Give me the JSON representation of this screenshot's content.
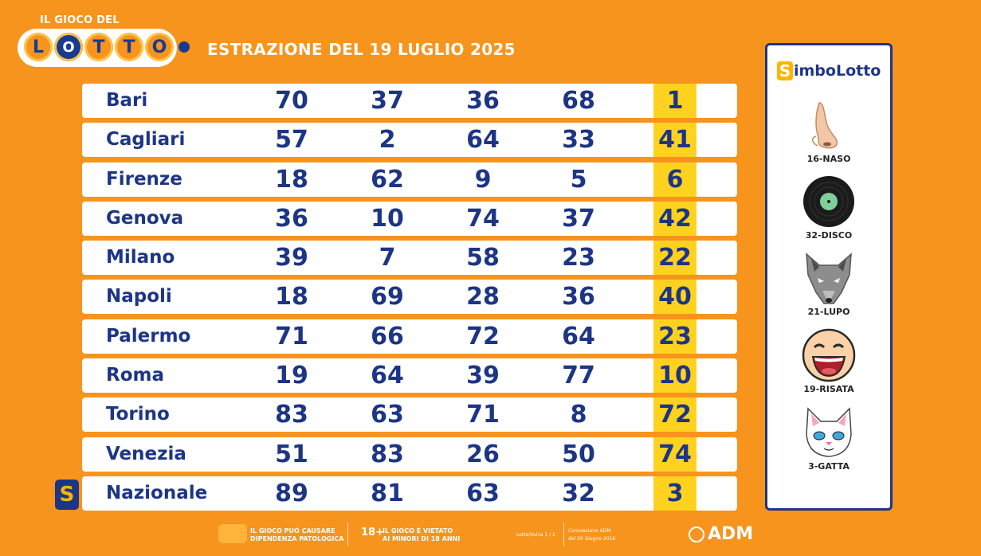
{
  "logo": {
    "subtitle": "IL GIOCO DEL",
    "letters": [
      "L",
      "O",
      "T",
      "T",
      "O"
    ]
  },
  "header": {
    "title": "ESTRAZIONE DEL 19 LUGLIO 2025"
  },
  "results": [
    {
      "city": "Bari",
      "numbers": [
        "70",
        "37",
        "36",
        "68"
      ],
      "bonus": "1"
    },
    {
      "city": "Cagliari",
      "numbers": [
        "57",
        "2",
        "64",
        "33"
      ],
      "bonus": "41"
    },
    {
      "city": "Firenze",
      "numbers": [
        "18",
        "62",
        "9",
        "5"
      ],
      "bonus": "6"
    },
    {
      "city": "Genova",
      "numbers": [
        "36",
        "10",
        "74",
        "37"
      ],
      "bonus": "42"
    },
    {
      "city": "Milano",
      "numbers": [
        "39",
        "7",
        "58",
        "23"
      ],
      "bonus": "22"
    },
    {
      "city": "Napoli",
      "numbers": [
        "18",
        "69",
        "28",
        "36"
      ],
      "bonus": "40"
    },
    {
      "city": "Palermo",
      "numbers": [
        "71",
        "66",
        "72",
        "64"
      ],
      "bonus": "23"
    },
    {
      "city": "Roma",
      "numbers": [
        "19",
        "64",
        "39",
        "77"
      ],
      "bonus": "10"
    },
    {
      "city": "Torino",
      "numbers": [
        "83",
        "63",
        "71",
        "8"
      ],
      "bonus": "72"
    },
    {
      "city": "Venezia",
      "numbers": [
        "51",
        "83",
        "26",
        "50"
      ],
      "bonus": "74"
    },
    {
      "city": "Nazionale",
      "numbers": [
        "89",
        "81",
        "63",
        "32"
      ],
      "bonus": "3"
    }
  ],
  "nazionale_badge": "S",
  "simbolotto": {
    "title_mark": "S",
    "title": "imboLotto",
    "symbols": [
      {
        "label": "16-NASO",
        "icon": "nose-icon"
      },
      {
        "label": "32-DISCO",
        "icon": "vinyl-disc-icon"
      },
      {
        "label": "21-LUPO",
        "icon": "wolf-icon"
      },
      {
        "label": "19-RISATA",
        "icon": "laughing-face-icon"
      },
      {
        "label": "3-GATTA",
        "icon": "cat-icon"
      }
    ]
  },
  "footer": {
    "warning_line1": "IL GIOCO PUÒ CAUSARE",
    "warning_line2": "DIPENDENZA PATOLOGICA",
    "age_badge": "18+",
    "age_line1": "IL GIOCO È VIETATO",
    "age_line2": "AI MINORI DI 18 ANNI",
    "odds": "Lotto/Vulca 1 / 1",
    "license_line1": "Concessione ADM",
    "license_line2": "del 20 Giugno 2016",
    "brand": "ADM"
  },
  "colors": {
    "background": "#f7941d",
    "navy": "#1d3585",
    "bonus_highlight": "#ffd21f"
  }
}
